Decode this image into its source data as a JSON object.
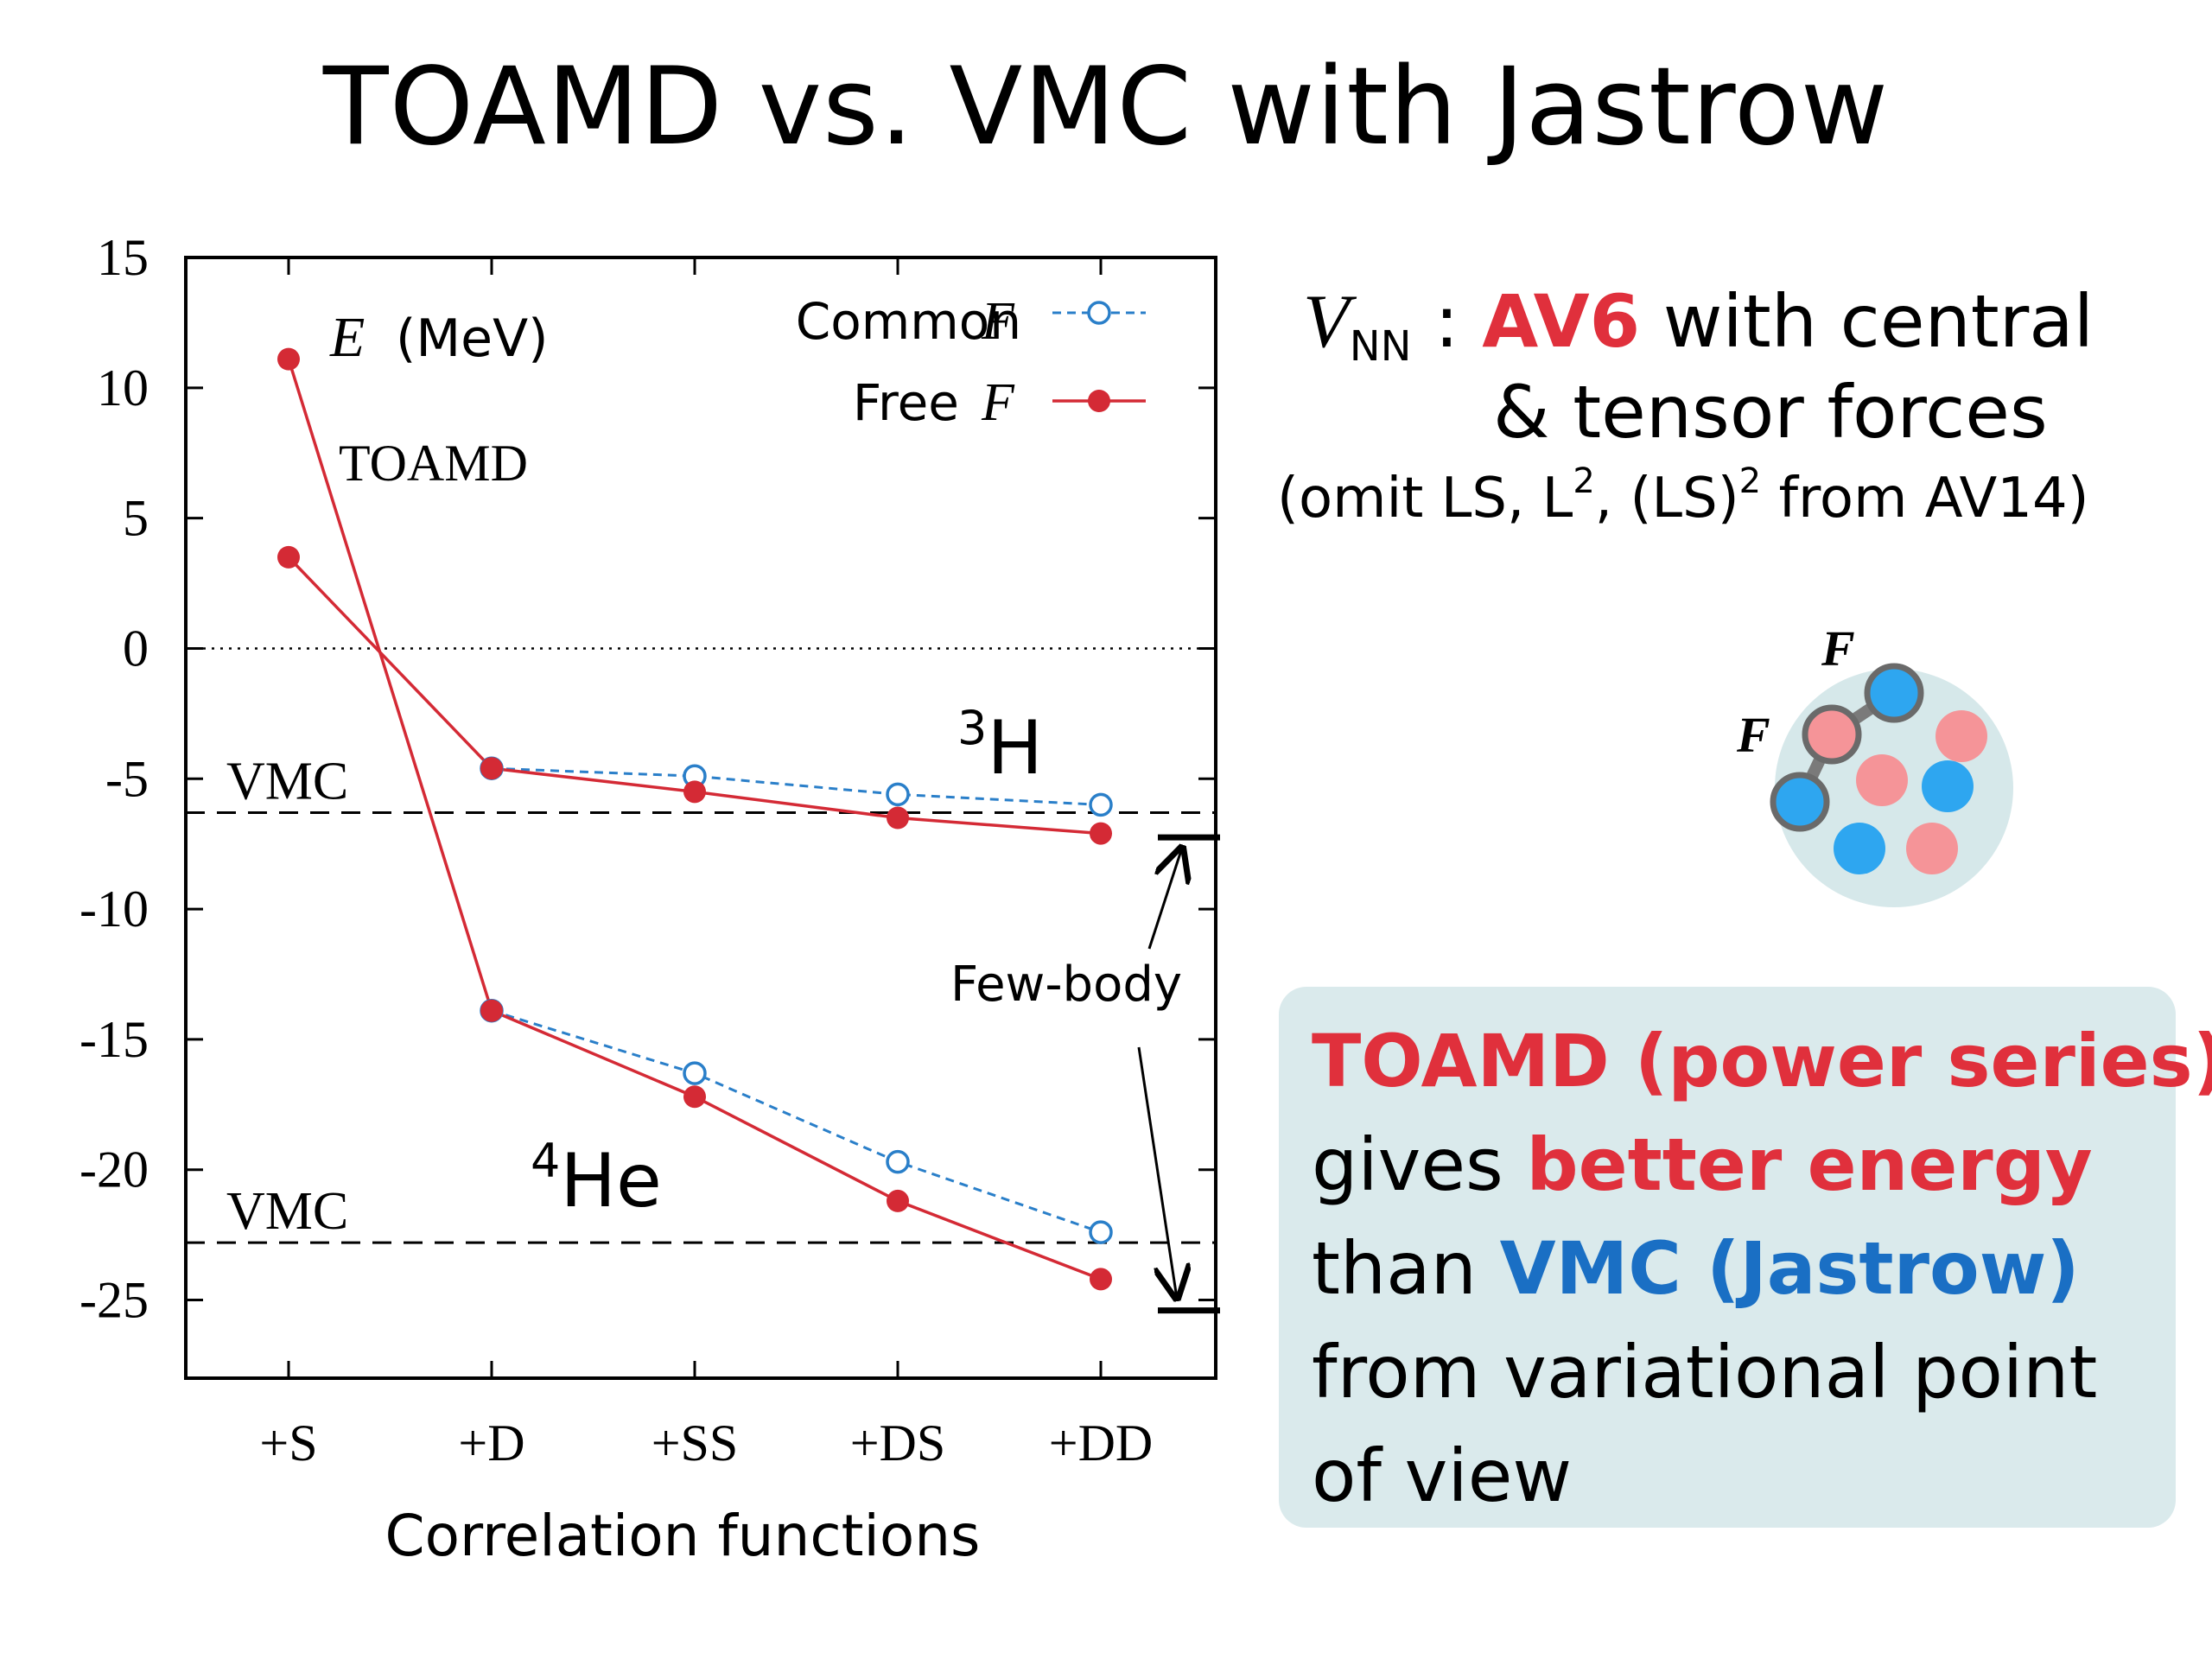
{
  "title": "TOAMD vs. VMC with Jastrow",
  "chart_data": {
    "type": "line",
    "categories": [
      "+S",
      "+D",
      "+SS",
      "+DS",
      "+DD"
    ],
    "xlabel": "Correlation functions",
    "ylabel_symbol": "E",
    "ylabel_unit": "(MeV)",
    "ylim": [
      -28,
      15
    ],
    "yticks": [
      15,
      10,
      5,
      0,
      -5,
      -10,
      -15,
      -20,
      -25
    ],
    "ytick_labels": [
      "15",
      "10",
      "5",
      "0",
      "-5",
      "-10",
      "-15",
      "-20",
      "-25"
    ],
    "zero_line": "dotted",
    "legend_position": "top-right",
    "legend_labels": [
      "Common",
      "Free"
    ],
    "legend_symbols": [
      "F",
      "F"
    ],
    "colors": {
      "common": "#2a7fc9",
      "free": "#d42a35"
    },
    "series": [
      {
        "name": "Common F",
        "group": "3H",
        "style": "dashed-open-circle",
        "x": [
          "+D",
          "+SS",
          "+DS",
          "+DD"
        ],
        "values": [
          -4.6,
          -4.9,
          -5.6,
          -6.0
        ]
      },
      {
        "name": "Free F",
        "group": "3H",
        "style": "solid-filled-circle",
        "x": [
          "+S",
          "+D",
          "+SS",
          "+DS",
          "+DD"
        ],
        "values": [
          3.5,
          -4.6,
          -5.5,
          -6.5,
          -7.1
        ]
      },
      {
        "name": "Common F",
        "group": "4He",
        "style": "dashed-open-circle",
        "x": [
          "+D",
          "+SS",
          "+DS",
          "+DD"
        ],
        "values": [
          -13.9,
          -16.3,
          -19.7,
          -22.4
        ]
      },
      {
        "name": "Free F",
        "group": "4He",
        "style": "solid-filled-circle",
        "x": [
          "+S",
          "+D",
          "+SS",
          "+DS",
          "+DD"
        ],
        "values": [
          11.1,
          -13.9,
          -17.2,
          -21.2,
          -24.2
        ]
      }
    ],
    "reference_lines": [
      {
        "label": "VMC",
        "value": -6.3
      },
      {
        "label": "VMC",
        "value": -22.8
      }
    ],
    "few_body": {
      "label": "Few-body",
      "values": [
        -7.25,
        -25.4
      ]
    },
    "annotations": {
      "toamd": "TOAMD",
      "h3_super": "3",
      "h3_base": "H",
      "he4_super": "4",
      "he4_base": "He"
    }
  },
  "vnn": {
    "symbol": "V",
    "subscript": "NN",
    "colon": " : ",
    "highlight": "AV6",
    "line1_rest": " with central",
    "line2": "& tensor forces",
    "line3_parts": [
      "(omit LS, L",
      "2",
      ", (LS)",
      "2",
      " from AV14)"
    ]
  },
  "diagram": {
    "label": "F",
    "colors": {
      "circle": "#d6e8ea",
      "blue": "#2ea6f0",
      "red": "#f59498",
      "link": "#7a7a7a"
    }
  },
  "summary": {
    "line1": "TOAMD (power series)",
    "line2_plain": "gives ",
    "line2_red": "better energy",
    "line3_plain": "than ",
    "line3_blue": "VMC (Jastrow)",
    "line4": "from variational point",
    "line5": "of view"
  }
}
